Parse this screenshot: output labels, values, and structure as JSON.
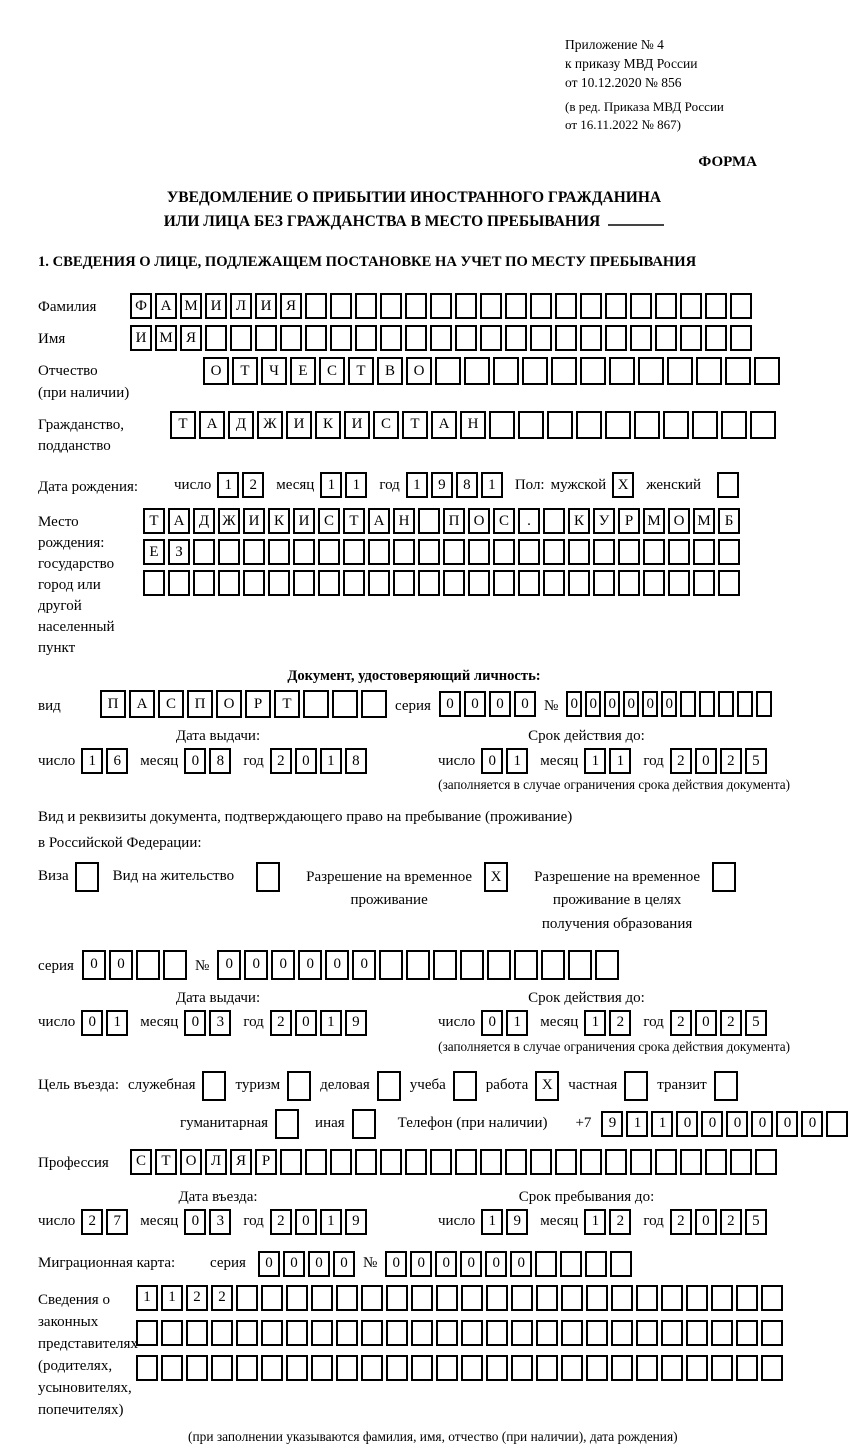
{
  "annex": {
    "line1": "Приложение № 4",
    "line2": "к приказу МВД России",
    "line3": "от 10.12.2020 № 856",
    "line4": "(в ред. Приказа МВД России",
    "line5": "от 16.11.2022 № 867)"
  },
  "forma_label": "ФОРМА",
  "title": {
    "line1": "УВЕДОМЛЕНИЕ О ПРИБЫТИИ ИНОСТРАННОГО ГРАЖДАНИНА",
    "line2": "ИЛИ ЛИЦА БЕЗ ГРАЖДАНСТВА В МЕСТО ПРЕБЫВАНИЯ"
  },
  "section1_heading": "1. СВЕДЕНИЯ О ЛИЦЕ, ПОДЛЕЖАЩЕМ ПОСТАНОВКЕ НА УЧЕТ ПО МЕСТУ ПРЕБЫВАНИЯ",
  "labels": {
    "day": "число",
    "month": "месяц",
    "year": "год",
    "series": "серия",
    "number": "№",
    "issue_date": "Дата выдачи:",
    "valid_until": "Срок действия до:",
    "limit_hint": "(заполняется в случае ограничения срока действия документа)"
  },
  "surname": {
    "label": "Фамилия",
    "cells": {
      "v": "ФАМИЛИЯ",
      "n": 25
    }
  },
  "firstname": {
    "label": "Имя",
    "cells": {
      "v": "ИМЯ",
      "n": 25
    }
  },
  "patronymic": {
    "label": "Отчество\n(при наличии)",
    "cells": {
      "v": "ОТЧЕСТВО",
      "n": 20
    }
  },
  "citizenship": {
    "label": "Гражданство,\nподданство",
    "cells": {
      "v": "ТАДЖИКИСТАН",
      "n": 21
    }
  },
  "birthdate": {
    "label": "Дата рождения:",
    "day": "12",
    "month": "11",
    "year": "1981",
    "sex_label": "Пол:",
    "male_label": "мужской",
    "male_box": "X",
    "female_label": "женский",
    "female_box": ""
  },
  "birthplace": {
    "label": "Место рождения:\nгосударство\nгород или другой\nнаселенный пункт",
    "row1": {
      "v": "ТАДЖИКИСТАН ПОС. КУРМОМБ",
      "n": 24
    },
    "row2": {
      "v": "ЕЗ",
      "n": 24
    },
    "row3": {
      "v": "",
      "n": 24
    }
  },
  "identity_doc": {
    "heading": "Документ, удостоверяющий личность:",
    "type_label": "вид",
    "type_cells": {
      "v": "ПАСПОРТ",
      "n": 10
    },
    "series_cells": {
      "v": "0000",
      "n": 4
    },
    "number_cells": {
      "v": "000000",
      "n": 11
    },
    "issue": {
      "day": "16",
      "month": "08",
      "year": "2018"
    },
    "expiry": {
      "day": "01",
      "month": "11",
      "year": "2025"
    }
  },
  "residence_doc": {
    "intro1": "Вид и реквизиты документа, подтверждающего право на пребывание (проживание)",
    "intro2": "в Российской Федерации:",
    "options": [
      {
        "label": "Виза",
        "box": ""
      },
      {
        "label": "Вид на жительство",
        "box": ""
      },
      {
        "label": "Разрешение на временное\nпроживание",
        "box": "X"
      },
      {
        "label": "Разрешение на временное\nпроживание в целях\nполучения образования",
        "box": ""
      }
    ],
    "series_cells": {
      "v": "00",
      "n": 4
    },
    "number_cells": {
      "v": "000000",
      "n": 15
    },
    "issue": {
      "day": "01",
      "month": "03",
      "year": "2019"
    },
    "expiry": {
      "day": "01",
      "month": "12",
      "year": "2025"
    }
  },
  "purpose": {
    "label": "Цель въезда:",
    "options": [
      {
        "label": "служебная",
        "box": ""
      },
      {
        "label": "туризм",
        "box": ""
      },
      {
        "label": "деловая",
        "box": ""
      },
      {
        "label": "учеба",
        "box": ""
      },
      {
        "label": "работа",
        "box": "X"
      },
      {
        "label": "частная",
        "box": ""
      },
      {
        "label": "транзит",
        "box": ""
      },
      {
        "label": "гуманитарная",
        "box": ""
      },
      {
        "label": "иная",
        "box": ""
      }
    ],
    "phone_label": "Телефон (при наличии)",
    "phone_prefix": "+7",
    "phone_cells": {
      "v": "911000000",
      "n": 10
    }
  },
  "profession": {
    "label": "Профессия",
    "cells": {
      "v": "СТОЛЯР",
      "n": 26
    }
  },
  "entry": {
    "date_label": "Дата въезда:",
    "stay_label": "Срок пребывания до:",
    "date": {
      "day": "27",
      "month": "03",
      "year": "2019"
    },
    "until": {
      "day": "19",
      "month": "12",
      "year": "2025"
    }
  },
  "migration_card": {
    "label": "Миграционная карта:",
    "series_cells": {
      "v": "0000",
      "n": 4
    },
    "number_cells": {
      "v": "000000",
      "n": 10
    }
  },
  "representatives": {
    "label": "Сведения о\nзаконных\nпредставителях\n(родителях,\nусыновителях,\nпопечителях)",
    "row1": {
      "v": "1122",
      "n": 26
    },
    "row2": {
      "v": "",
      "n": 26
    },
    "row3": {
      "v": "",
      "n": 26
    },
    "hint": "(при заполнении указываются фамилия, имя, отчество (при наличии), дата рождения)"
  }
}
